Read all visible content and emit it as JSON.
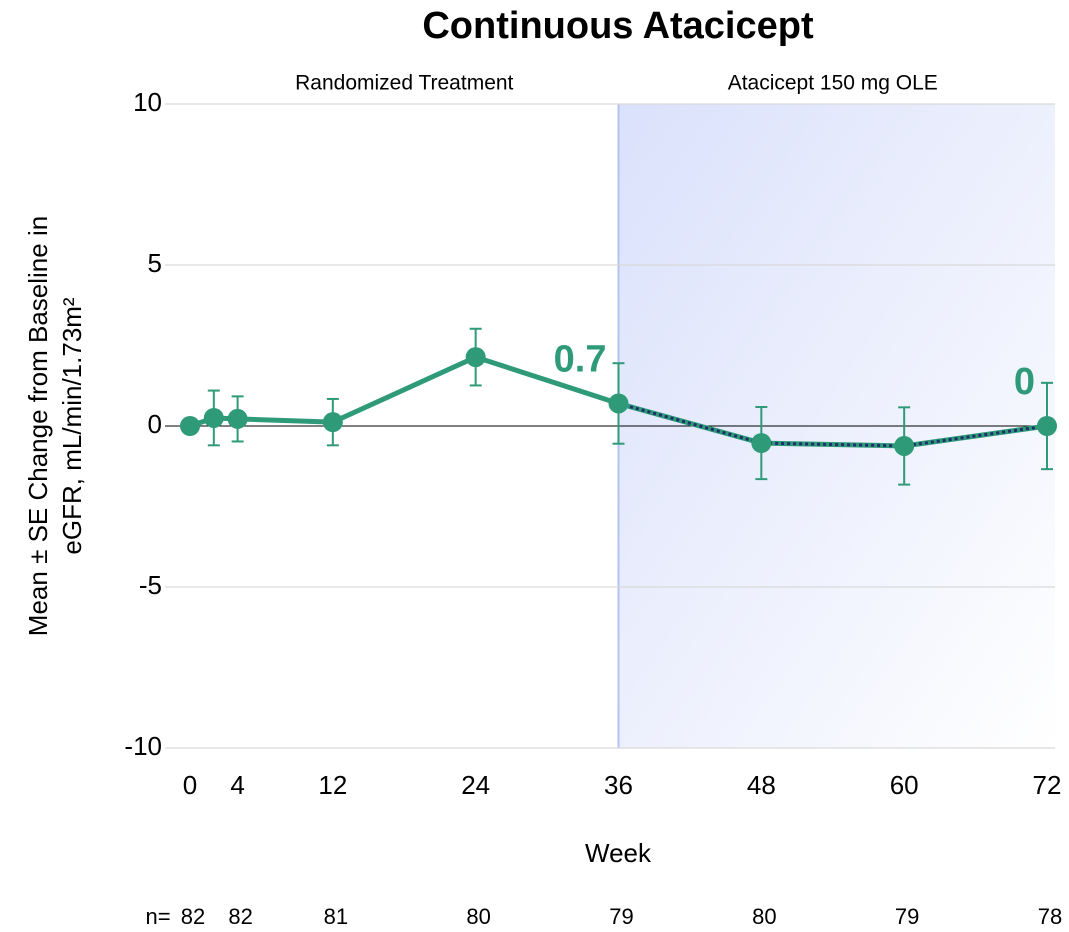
{
  "chart_data": {
    "type": "line",
    "title": "Continuous Atacicept",
    "y_label": [
      "Mean ± SE Change from Baseline in",
      "eGFR, mL/min/1.73m²"
    ],
    "x_label": "Week",
    "regions": [
      {
        "label": "Randomized Treatment",
        "start": 0,
        "end": 36
      },
      {
        "label": "Atacicept 150 mg OLE",
        "start": 36,
        "end": 72,
        "shaded": true
      }
    ],
    "series": [
      {
        "name": "Continuous Atacicept",
        "color": "#2e9a78",
        "overlay_color": "#1f2f6b",
        "x": [
          0,
          2,
          4,
          12,
          24,
          36,
          48,
          60,
          72
        ],
        "values": [
          0,
          0.25,
          0.22,
          0.12,
          2.14,
          0.7,
          -0.53,
          -0.62,
          0
        ],
        "errors": [
          0,
          0.85,
          0.7,
          0.72,
          0.88,
          1.25,
          1.12,
          1.2,
          1.34
        ]
      }
    ],
    "annotations": [
      {
        "text": "0.7",
        "x": 36
      },
      {
        "text": "0",
        "x": 72
      }
    ],
    "xlim": [
      0,
      72
    ],
    "xticks": [
      0,
      4,
      12,
      24,
      36,
      48,
      60,
      72
    ],
    "ylim": [
      -10,
      10
    ],
    "yticks": [
      -10,
      -5,
      0,
      5,
      10
    ],
    "grid": true,
    "n_label": "n=",
    "n": [
      82,
      82,
      81,
      80,
      79,
      80,
      79,
      78
    ]
  }
}
